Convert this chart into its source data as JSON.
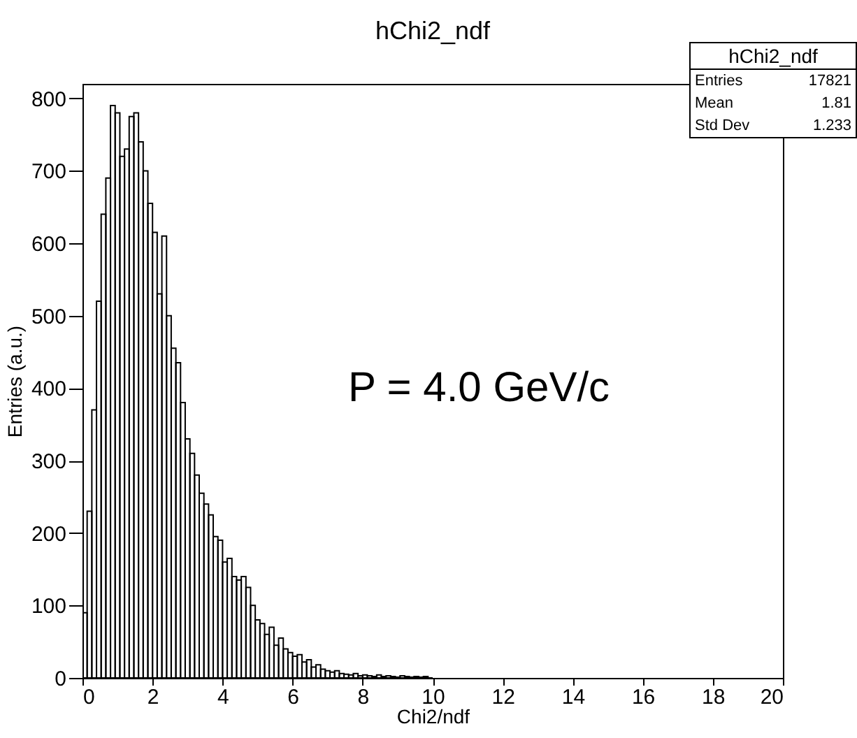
{
  "chart_data": {
    "type": "histogram",
    "title": "hChi2_ndf",
    "xlabel": "Chi2/ndf",
    "ylabel": "Entries (a.u.)",
    "bins": [
      0,
      0.133,
      0.267,
      0.4,
      0.533,
      0.667,
      0.8,
      0.933,
      1.067,
      1.2,
      1.333,
      1.467,
      1.6,
      1.733,
      1.867,
      2,
      2.133,
      2.267,
      2.4,
      2.533,
      2.667,
      2.8,
      2.933,
      3.067,
      3.2,
      3.333,
      3.467,
      3.6,
      3.733,
      3.867,
      4,
      4.133,
      4.267,
      4.4,
      4.533,
      4.667,
      4.8,
      4.933,
      5.067,
      5.2,
      5.333,
      5.467,
      5.6,
      5.733,
      5.867,
      6,
      6.133,
      6.267,
      6.4,
      6.533,
      6.667,
      6.8,
      6.933,
      7.067,
      7.2,
      7.333,
      7.467,
      7.6,
      7.733,
      7.867,
      8,
      8.133,
      8.267,
      8.4,
      8.533,
      8.667,
      8.8,
      8.933,
      9.067,
      9.2,
      9.333,
      9.467,
      9.6,
      9.733,
      9.867,
      10
    ],
    "values": [
      90,
      230,
      370,
      520,
      640,
      690,
      790,
      780,
      720,
      730,
      775,
      780,
      740,
      700,
      655,
      615,
      530,
      610,
      500,
      455,
      435,
      380,
      330,
      310,
      280,
      255,
      240,
      225,
      195,
      190,
      160,
      165,
      140,
      135,
      140,
      125,
      100,
      80,
      75,
      60,
      70,
      45,
      55,
      40,
      35,
      30,
      32,
      22,
      25,
      15,
      18,
      12,
      10,
      8,
      10,
      6,
      5,
      4,
      6,
      3,
      4,
      3,
      2,
      4,
      2,
      3,
      2,
      1,
      3,
      2,
      1,
      2,
      1,
      2,
      0
    ],
    "color": "#000000",
    "xlim": [
      0,
      20
    ],
    "xticks": [
      0,
      2,
      4,
      6,
      8,
      10,
      12,
      14,
      16,
      18,
      20
    ],
    "ylim": [
      0,
      820
    ],
    "yticks": [
      0,
      100,
      200,
      300,
      400,
      500,
      600,
      700,
      800
    ],
    "grid": false,
    "annotations": [
      "P = 4.0 GeV/c",
      "hChi2_ndf",
      "Entries",
      "17821",
      "Mean",
      "1.81",
      "Std Dev",
      "1.233"
    ]
  }
}
